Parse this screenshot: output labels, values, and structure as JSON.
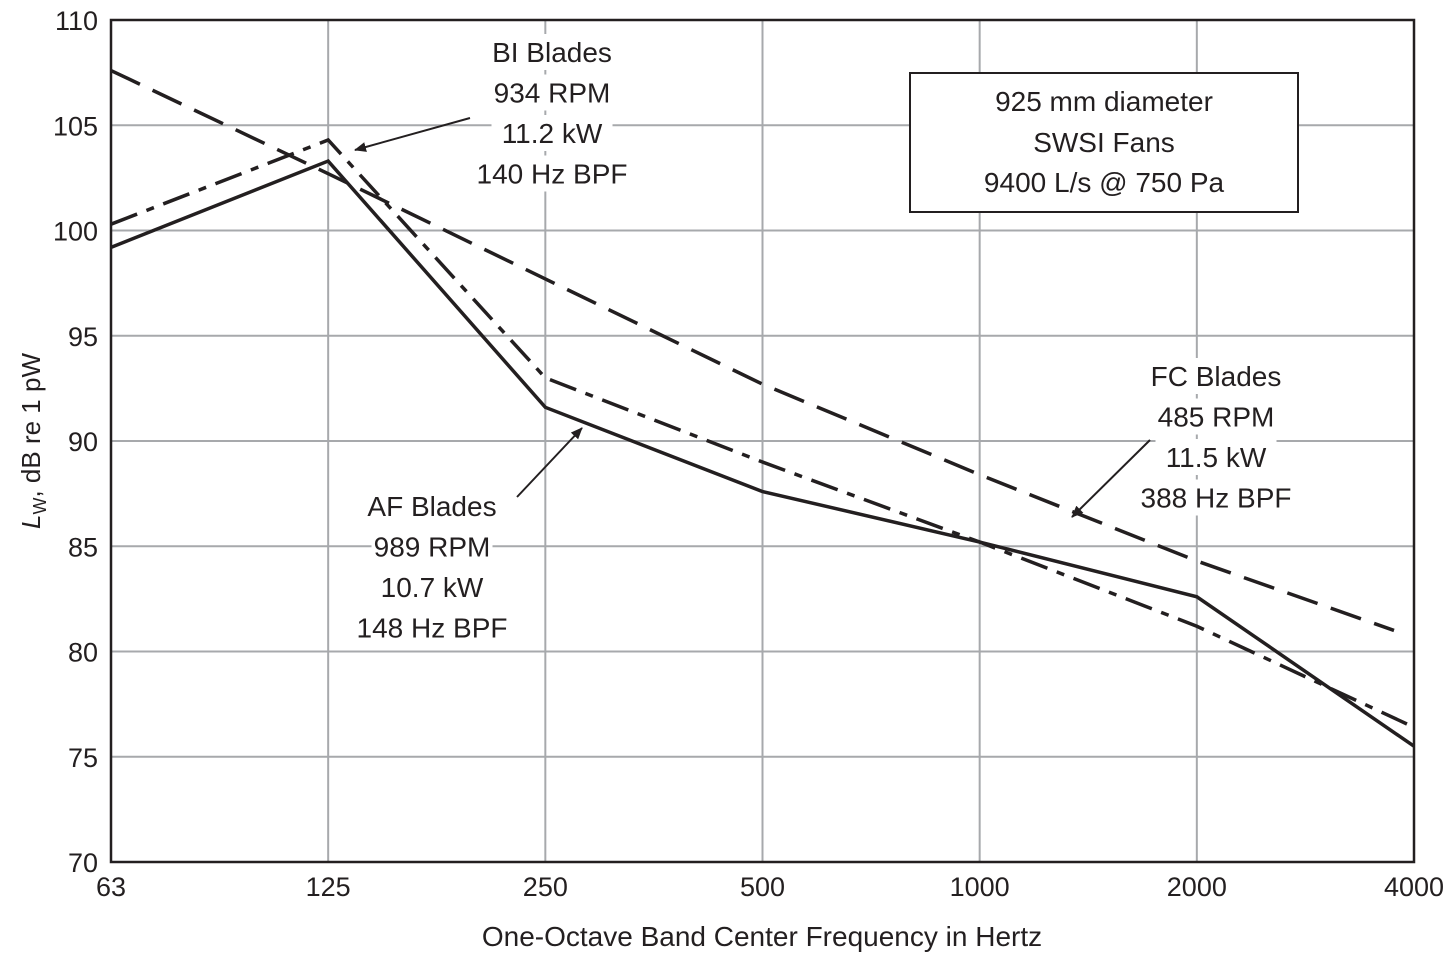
{
  "chart_data": {
    "type": "line",
    "title": "",
    "xlabel": "One-Octave Band Center Frequency in Hertz",
    "ylabel_main": "L",
    "ylabel_sub": "W",
    "ylabel_rest": ", dB re 1 pW",
    "x_scale": "octave (log2)",
    "categories": [
      "63",
      "125",
      "250",
      "500",
      "1000",
      "2000",
      "4000"
    ],
    "ylim": [
      70,
      110
    ],
    "yticks": [
      70,
      75,
      80,
      85,
      90,
      95,
      100,
      105,
      110
    ],
    "grid": true,
    "info_box": [
      "925 mm diameter",
      "SWSI Fans",
      "9400 L/s @ 750 Pa"
    ],
    "series": [
      {
        "style": "solid",
        "values": [
          99.2,
          103.3,
          91.6,
          87.6,
          85.2,
          82.6,
          75.5
        ]
      },
      {
        "style": "dash-dot",
        "values": [
          100.3,
          104.3,
          93.0,
          89.0,
          85.2,
          81.2,
          76.4
        ]
      },
      {
        "style": "dashed",
        "values": [
          107.6,
          102.7,
          97.7,
          92.7,
          88.4,
          84.3,
          81.0
        ]
      }
    ],
    "annotations": [
      {
        "series_style": "dash-dot",
        "lines": [
          "BI Blades",
          "934 RPM",
          "11.2 kW",
          "140 Hz BPF"
        ]
      },
      {
        "series_style": "solid",
        "lines": [
          "AF Blades",
          "989 RPM",
          "10.7 kW",
          "148 Hz BPF"
        ]
      },
      {
        "series_style": "dashed",
        "lines": [
          "FC Blades",
          "485 RPM",
          "11.5 kW",
          "388 Hz BPF"
        ]
      }
    ],
    "colors": {
      "line": "#231f20",
      "grid": "#a7a9ac"
    }
  }
}
